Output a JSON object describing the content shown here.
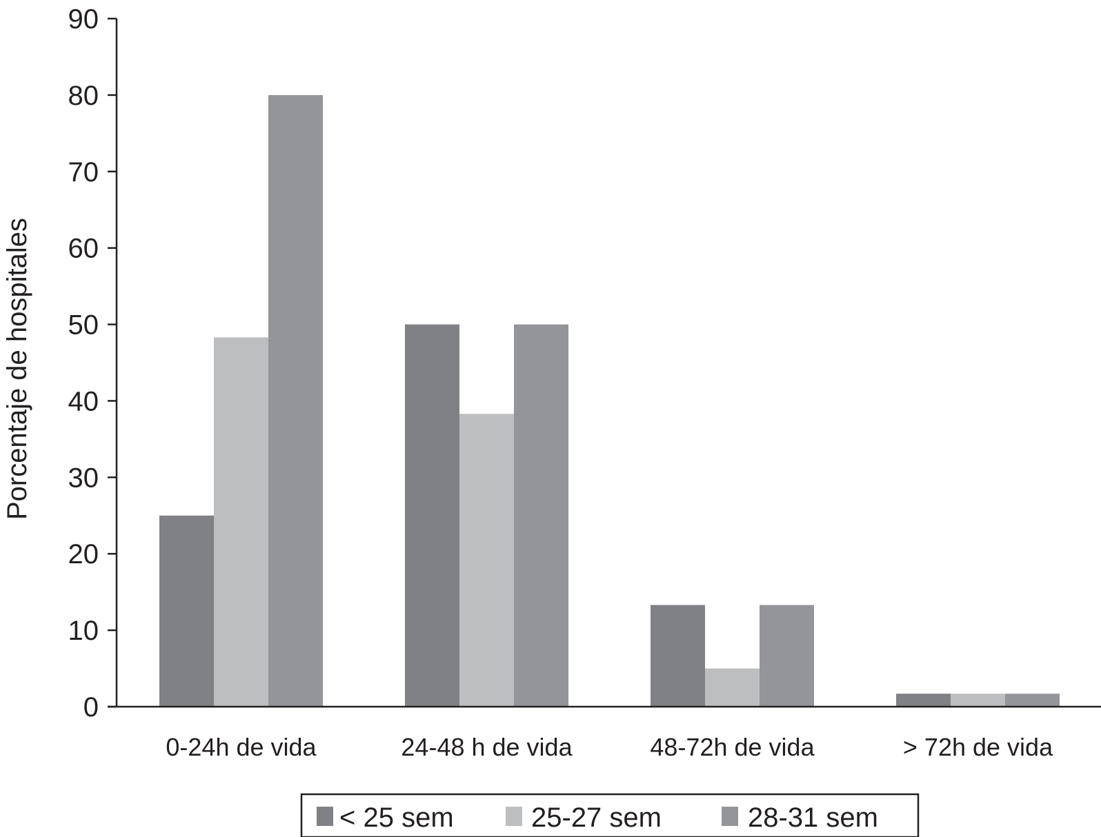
{
  "chart_data": {
    "type": "bar",
    "title": "",
    "xlabel": "",
    "ylabel": "Porcentaje de hospitales",
    "ylim": [
      0,
      90
    ],
    "yticks": [
      0,
      10,
      20,
      30,
      40,
      50,
      60,
      70,
      80,
      90
    ],
    "grid": false,
    "legend_position": "bottom",
    "categories": [
      "0-24h de vida",
      "24-48 h de vida",
      "48-72h de vida",
      "> 72h de vida"
    ],
    "series": [
      {
        "name": "< 25 sem",
        "color": "#808184",
        "values": [
          25,
          50,
          13.3,
          1.7
        ]
      },
      {
        "name": "25-27 sem",
        "color": "#bcbec0",
        "values": [
          48.3,
          38.3,
          5,
          1.7
        ]
      },
      {
        "name": "28-31 sem",
        "color": "#939598",
        "values": [
          80,
          50,
          13.3,
          1.7
        ]
      }
    ]
  }
}
